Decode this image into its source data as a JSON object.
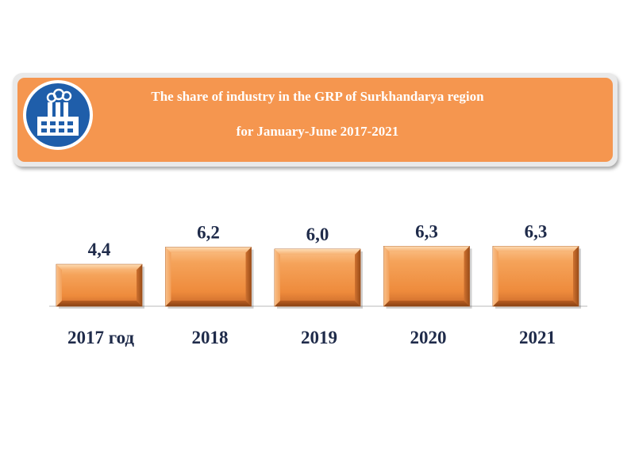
{
  "header": {
    "title_line1": "The share of industry in the GRP of Surkhandarya region",
    "title_line2": "for January-June 2017-2021",
    "icon": "factory-icon"
  },
  "colors": {
    "banner": "#f5964f",
    "bar": "#f39a4e",
    "text": "#1f2b4a",
    "icon_circle": "#1f5eaa"
  },
  "chart_data": {
    "type": "bar",
    "title": "The share of industry in the GRP of Surkhandarya region for January-June 2017-2021",
    "categories": [
      "2017 год",
      "2018",
      "2019",
      "2020",
      "2021"
    ],
    "values": [
      4.4,
      6.2,
      6.0,
      6.3,
      6.3
    ],
    "value_labels": [
      "4,4",
      "6,2",
      "6,0",
      "6,3",
      "6,3"
    ],
    "xlabel": "",
    "ylabel": "",
    "ylim": [
      0,
      6.5
    ],
    "grid": false,
    "legend": "none"
  }
}
